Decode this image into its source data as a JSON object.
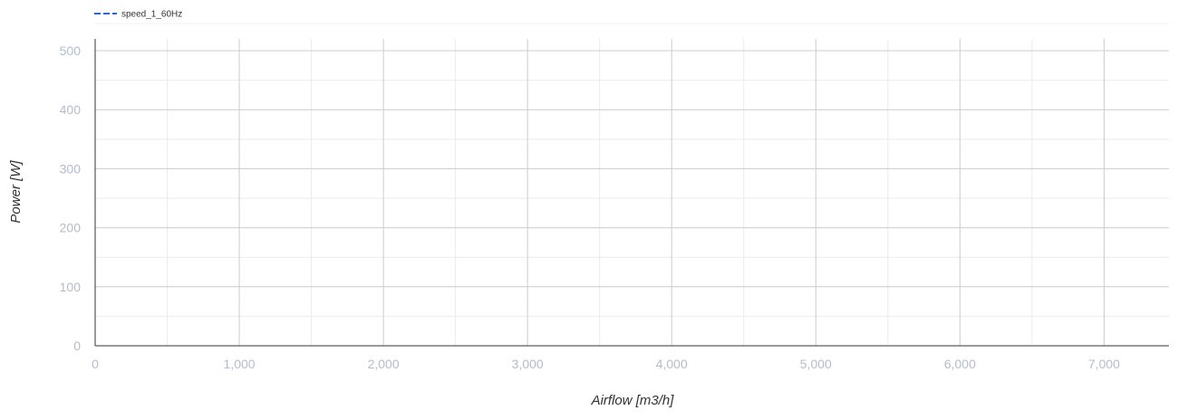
{
  "chart_data": {
    "type": "line",
    "title": "",
    "xlabel": "Airflow [m3/h]",
    "ylabel": "Power [W]",
    "xlim": [
      0,
      7450
    ],
    "ylim": [
      0,
      520
    ],
    "x_ticks": [
      0,
      1000,
      2000,
      3000,
      4000,
      5000,
      6000,
      7000
    ],
    "x_tick_labels": [
      "0",
      "1,000",
      "2,000",
      "3,000",
      "4,000",
      "5,000",
      "6,000",
      "7,000"
    ],
    "x_minor_ticks": [
      500,
      1500,
      2500,
      3500,
      4500,
      5500,
      6500
    ],
    "y_ticks": [
      0,
      100,
      200,
      300,
      400,
      500
    ],
    "y_tick_labels": [
      "0",
      "100",
      "200",
      "300",
      "400",
      "500"
    ],
    "y_minor_ticks": [
      50,
      150,
      250,
      350,
      450
    ],
    "grid": true,
    "legend_position": "top-left",
    "series": [
      {
        "name": "speed_1_60Hz",
        "color": "#3366cc",
        "line_style": "dashed",
        "x": [],
        "y": []
      }
    ]
  }
}
